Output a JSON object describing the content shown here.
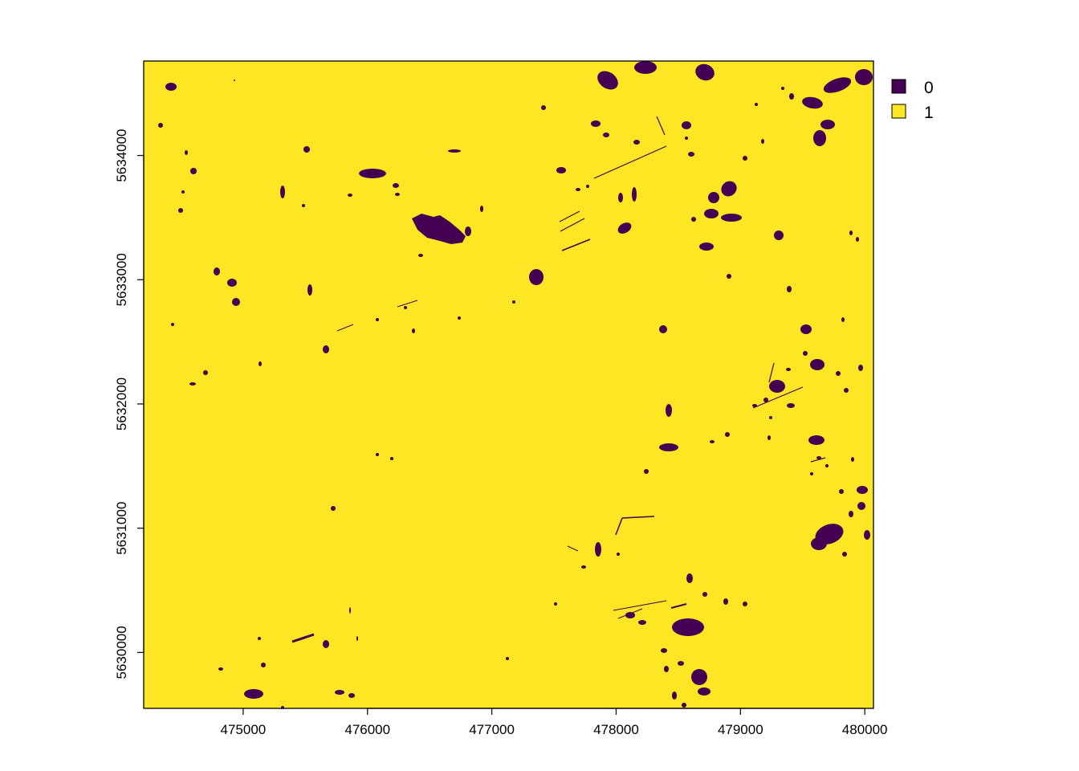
{
  "chart_data": {
    "type": "raster",
    "raster_values": [
      0,
      1
    ],
    "xlim": [
      474200,
      480070
    ],
    "ylim": [
      5629550,
      5634760
    ],
    "x_ticks": [
      475000,
      476000,
      477000,
      478000,
      479000,
      480000
    ],
    "y_ticks": [
      5630000,
      5631000,
      5632000,
      5633000,
      5634000
    ],
    "x_tick_labels": [
      "475000",
      "476000",
      "477000",
      "478000",
      "479000",
      "480000"
    ],
    "y_tick_labels": [
      "5630000",
      "5631000",
      "5632000",
      "5633000",
      "5634000"
    ],
    "legend": {
      "placement": "right",
      "entries": [
        {
          "label": "0",
          "color": "#440154"
        },
        {
          "label": "1",
          "color": "#FDE725"
        }
      ]
    },
    "grid": false
  },
  "colors": {
    "class_0": "#440154",
    "class_1": "#FDE725",
    "axis": "#000000",
    "background": "#ffffff"
  }
}
